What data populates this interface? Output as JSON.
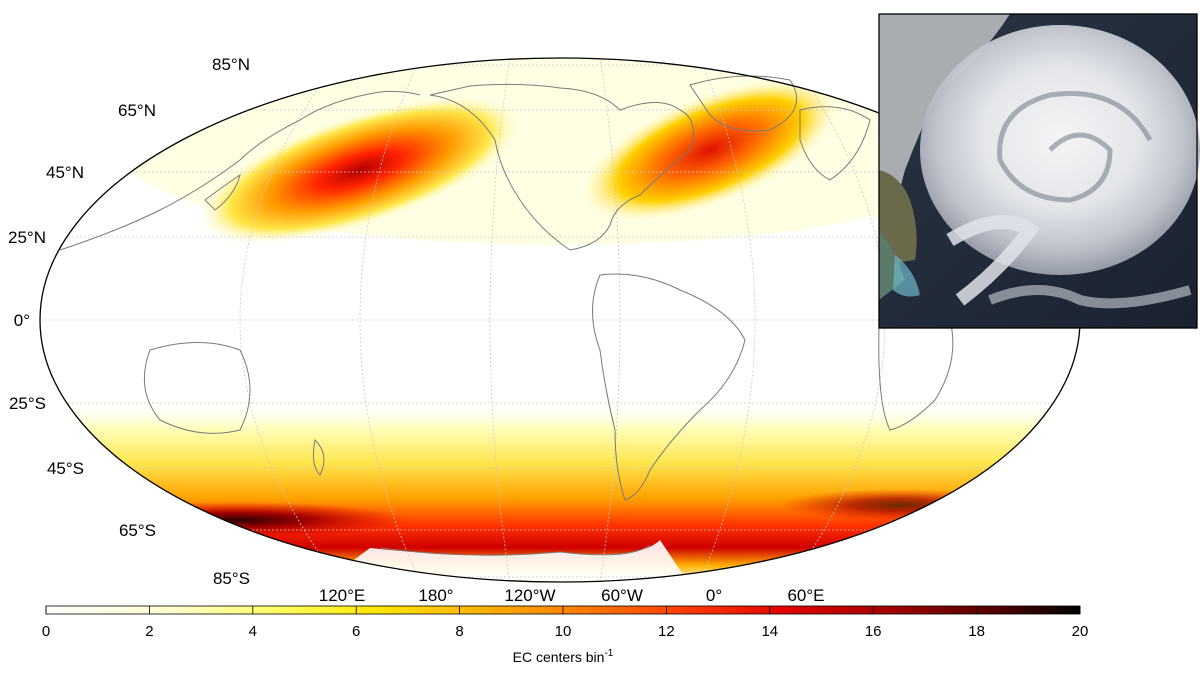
{
  "map": {
    "lat_labels": [
      "85°N",
      "65°N",
      "45°N",
      "25°N",
      "0°",
      "25°S",
      "45°S",
      "65°S",
      "85°S"
    ],
    "lon_labels": [
      "120°E",
      "180°",
      "120°W",
      "60°W",
      "0°",
      "60°E"
    ],
    "projection": "Robinson (Pacific-centered)",
    "grid": true
  },
  "colorbar": {
    "ticks": [
      "0",
      "2",
      "4",
      "6",
      "8",
      "10",
      "12",
      "14",
      "16",
      "18",
      "20"
    ],
    "label_main": "EC centers bin",
    "label_exp": "-1",
    "range": [
      0,
      20
    ],
    "colors": [
      "#ffffff",
      "#ffff66",
      "#ffdd00",
      "#ff9900",
      "#ff3300",
      "#cc0000",
      "#660000",
      "#000000"
    ]
  },
  "inset": {
    "description_icon": "satellite-image-icon"
  },
  "chart_data": {
    "type": "heatmap",
    "xlabel": "",
    "ylabel": "",
    "colorbar_label": "EC centers bin-1",
    "zlim": [
      0,
      20
    ],
    "hotspots": [
      {
        "region": "North Pacific",
        "lat": 45,
        "lon": 170,
        "max_value": 16
      },
      {
        "region": "North Atlantic",
        "lat": 50,
        "lon": -30,
        "max_value": 14
      },
      {
        "region": "Southern Ocean Pacific sector",
        "lat": -60,
        "lon": -170,
        "max_value": 20
      },
      {
        "region": "Southern Ocean Atlantic/Indian sector",
        "lat": -58,
        "lon": 30,
        "max_value": 16
      }
    ]
  }
}
